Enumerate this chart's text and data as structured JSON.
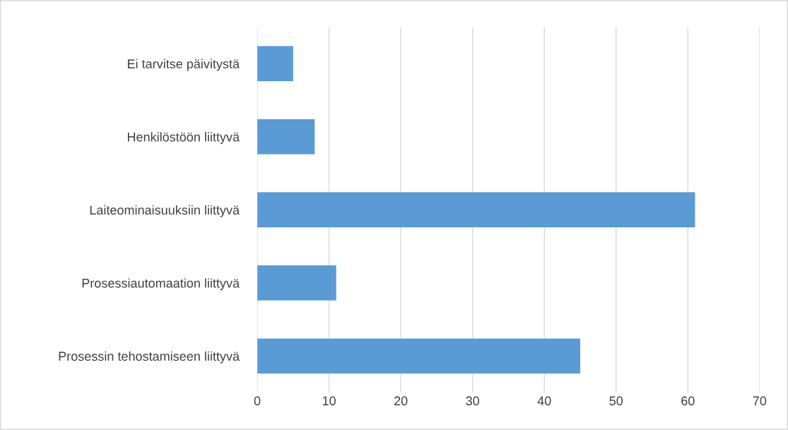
{
  "chart_data": {
    "type": "bar",
    "orientation": "horizontal",
    "categories": [
      "Ei tarvitse päivitystä",
      "Henkilöstöön liittyvä",
      "Laiteominaisuuksiin liittyvä",
      "Prosessiautomaation liittyvä",
      "Prosessin tehostamiseen liittyvä"
    ],
    "values": [
      5,
      8,
      61,
      11,
      45
    ],
    "color": "#5b9bd5",
    "xlim": [
      0,
      70
    ],
    "xticks": [
      0,
      10,
      20,
      30,
      40,
      50,
      60,
      70
    ],
    "grid": "x",
    "legend": false
  }
}
